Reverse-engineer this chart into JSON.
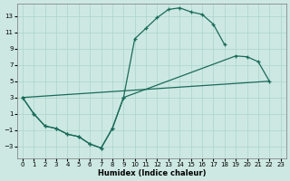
{
  "bg_color": "#cde8e2",
  "grid_color": "#aad4cc",
  "line_color": "#1a6b5a",
  "xlabel": "Humidex (Indice chaleur)",
  "xlim": [
    -0.5,
    23.5
  ],
  "ylim": [
    -4.5,
    14.5
  ],
  "xticks": [
    0,
    1,
    2,
    3,
    4,
    5,
    6,
    7,
    8,
    9,
    10,
    11,
    12,
    13,
    14,
    15,
    16,
    17,
    18,
    19,
    20,
    21,
    22,
    23
  ],
  "yticks": [
    -3,
    -1,
    1,
    3,
    5,
    7,
    9,
    11,
    13
  ],
  "line1_x": [
    0,
    1,
    2,
    3,
    4,
    5,
    6,
    7,
    8,
    9,
    10,
    11,
    12,
    13,
    14,
    15,
    16,
    17,
    18
  ],
  "line1_y": [
    3,
    1,
    -0.5,
    -0.8,
    -1.5,
    -1.8,
    -2.7,
    -3.2,
    -0.8,
    3.0,
    10.2,
    11.5,
    12.8,
    13.8,
    14.0,
    13.5,
    13.2,
    12.0,
    9.5
  ],
  "line2_x": [
    0,
    1,
    2,
    3,
    4,
    5,
    6,
    7,
    8,
    9,
    19,
    20,
    21,
    22
  ],
  "line2_y": [
    3,
    1,
    -0.5,
    -0.8,
    -1.5,
    -1.8,
    -2.7,
    -3.2,
    -0.8,
    3.0,
    8.1,
    8.0,
    7.4,
    5.0
  ],
  "line3_x": [
    0,
    22
  ],
  "line3_y": [
    3,
    5.0
  ]
}
